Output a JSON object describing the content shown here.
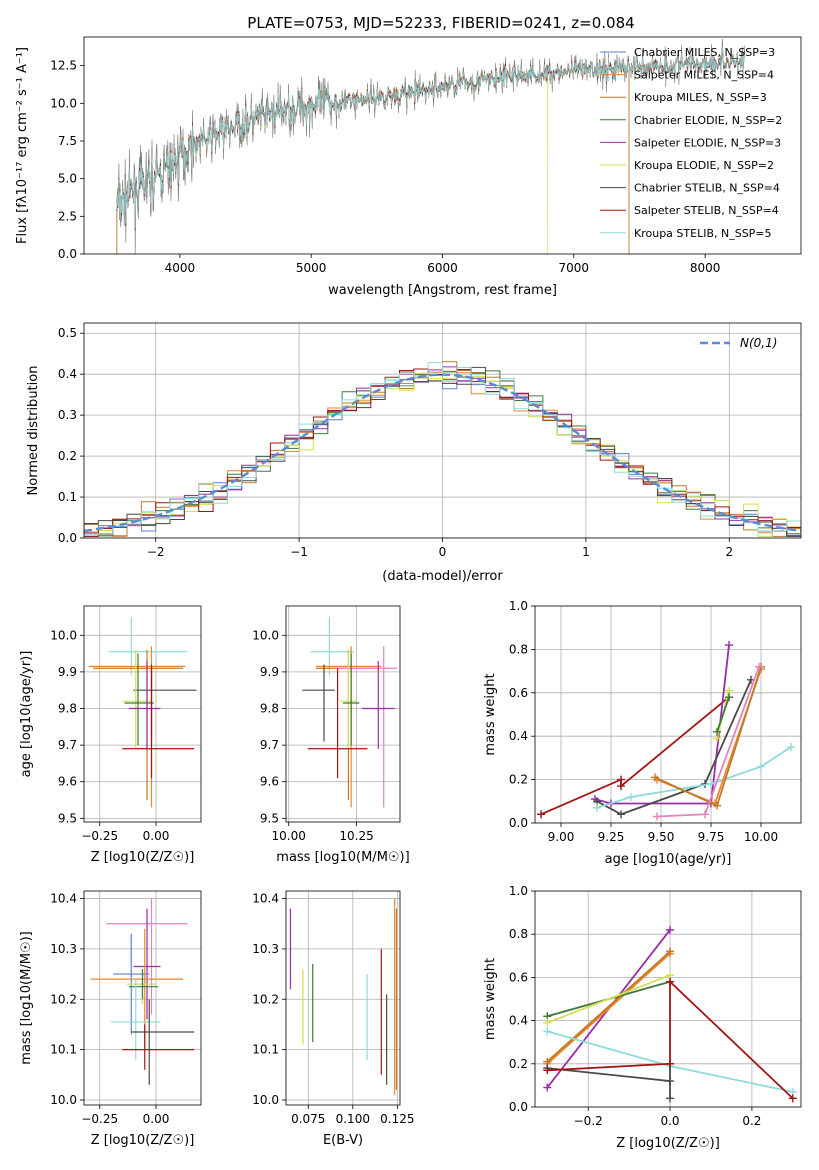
{
  "palette": {
    "Chabrier MILES": "#5e7fd6",
    "Salpeter MILES": "#e8872f",
    "Kroupa MILES": "#c07a27",
    "Chabrier ELODIE": "#3c7a3c",
    "Salpeter ELODIE": "#9a2ca8",
    "Kroupa ELODIE": "#d2e051",
    "Chabrier STELIB": "#4a4a4a",
    "Salpeter STELIB": "#a31515",
    "Kroupa STELIB": "#8fdadb",
    "extra_pink": "#e482c0",
    "extra_lightgreen": "#8fce3a",
    "data_gray": "#808080",
    "normal_curve": "#5b8bd6"
  },
  "chart_data": [
    {
      "type": "line",
      "title": "PLATE=0753, MJD=52233, FIBERID=0241, z=0.084",
      "xlabel": "wavelength [Angstrom, rest frame]",
      "ylabel": "Flux [fλ10⁻¹⁷ erg cm⁻² s⁻¹ A⁻¹]",
      "xlim": [
        3270,
        8730
      ],
      "ylim": [
        0,
        14.4
      ],
      "xticks": [
        "4000",
        "5000",
        "6000",
        "7000",
        "8000"
      ],
      "yticks": [
        "0.0",
        "2.5",
        "5.0",
        "7.5",
        "10.0",
        "12.5"
      ],
      "legend": "right",
      "series": [
        {
          "name": "Chabrier MILES, N_SSP=3"
        },
        {
          "name": "Salpeter MILES, N_SSP=4"
        },
        {
          "name": "Kroupa MILES, N_SSP=3"
        },
        {
          "name": "Chabrier ELODIE, N_SSP=2"
        },
        {
          "name": "Salpeter ELODIE, N_SSP=3"
        },
        {
          "name": "Kroupa ELODIE, N_SSP=2"
        },
        {
          "name": "Chabrier STELIB, N_SSP=4"
        },
        {
          "name": "Salpeter STELIB, N_SSP=4"
        },
        {
          "name": "Kroupa STELIB, N_SSP=5"
        }
      ],
      "continuum": {
        "x": [
          3520,
          3600,
          3700,
          3800,
          3900,
          4000,
          4100,
          4200,
          4300,
          4400,
          4500,
          4600,
          4700,
          4800,
          4900,
          5000,
          5100,
          5200,
          5300,
          5400,
          5500,
          5600,
          5700,
          5800,
          5900,
          6000,
          6100,
          6200,
          6300,
          6400,
          6500,
          6600,
          6700,
          6800,
          6900,
          7000,
          7100,
          7200,
          7300,
          7400,
          7500,
          7600,
          7700,
          7800,
          7900,
          8000,
          8100,
          8200,
          8300
        ],
        "y": [
          3.2,
          3.8,
          4.4,
          5.0,
          5.6,
          6.4,
          7.3,
          7.6,
          8.0,
          8.4,
          8.7,
          9.0,
          9.3,
          9.5,
          9.7,
          9.9,
          10.0,
          10.1,
          10.2,
          10.3,
          10.4,
          10.5,
          10.6,
          10.7,
          10.9,
          11.1,
          11.3,
          11.4,
          11.5,
          11.6,
          11.8,
          11.9,
          11.9,
          12.0,
          12.1,
          12.1,
          12.2,
          12.3,
          12.3,
          12.4,
          12.4,
          12.5,
          12.5,
          12.6,
          12.6,
          12.7,
          12.7,
          12.8,
          12.8
        ]
      },
      "dropouts": [
        {
          "series": "Kroupa ELODIE, N_SSP=2",
          "x": 6800
        },
        {
          "series": "Salpeter MILES, N_SSP=4",
          "x": 7420
        }
      ]
    },
    {
      "type": "bar",
      "xlabel": "(data-model)/error",
      "ylabel": "Normed distribution",
      "xlim": [
        -2.5,
        2.5
      ],
      "ylim": [
        0,
        0.525
      ],
      "xticks": [
        "−2",
        "−1",
        "0",
        "1",
        "2"
      ],
      "yticks": [
        "0.0",
        "0.1",
        "0.2",
        "0.3",
        "0.4",
        "0.5"
      ],
      "grid": true,
      "legend": "top-right",
      "normal_curve": {
        "label": "N(0,1)",
        "mean": 0,
        "sigma": 1
      },
      "bin_edges_range": [
        -2.5,
        2.5
      ],
      "bin_width": 0.1
    },
    {
      "type": "scatter",
      "xlabel": "Z [log10(Z/Z☉)]",
      "ylabel": "age  [log10(age/yr)]",
      "xlim": [
        -0.32,
        0.2
      ],
      "ylim": [
        9.49,
        10.08
      ],
      "xticks": [
        "−0.25",
        "0.00"
      ],
      "yticks": [
        "9.5",
        "9.6",
        "9.7",
        "9.8",
        "9.9",
        "10.0"
      ],
      "points": [
        {
          "c": "Kroupa STELIB",
          "x": -0.11,
          "y": 9.955,
          "xe": [
            -0.21,
            0.14
          ],
          "ye": [
            9.89,
            10.05
          ]
        },
        {
          "c": "Salpeter MILES",
          "x": -0.02,
          "y": 9.915,
          "xe": [
            -0.3,
            0.13
          ],
          "ye": [
            9.53,
            9.97
          ]
        },
        {
          "c": "Kroupa MILES",
          "x": -0.04,
          "y": 9.91,
          "xe": [
            -0.28,
            0.12
          ],
          "ye": [
            9.55,
            9.96
          ]
        },
        {
          "c": "Chabrier STELIB",
          "x": -0.02,
          "y": 9.85,
          "xe": [
            -0.1,
            0.18
          ],
          "ye": [
            9.71,
            9.92
          ]
        },
        {
          "c": "Kroupa ELODIE",
          "x": -0.09,
          "y": 9.82,
          "xe": [
            -0.15,
            -0.02
          ],
          "ye": [
            9.69,
            9.96
          ]
        },
        {
          "c": "Chabrier ELODIE",
          "x": -0.08,
          "y": 9.815,
          "xe": [
            -0.14,
            -0.01
          ],
          "ye": [
            9.7,
            9.95
          ]
        },
        {
          "c": "Salpeter ELODIE",
          "x": -0.04,
          "y": 9.8,
          "xe": [
            -0.12,
            0.02
          ],
          "ye": [
            9.69,
            9.93
          ]
        },
        {
          "c": "Salpeter STELIB",
          "x": -0.02,
          "y": 9.69,
          "xe": [
            -0.15,
            0.17
          ],
          "ye": [
            9.61,
            9.91
          ]
        }
      ]
    },
    {
      "type": "scatter",
      "xlabel": "mass [log10(M/M☉)]",
      "xlim": [
        9.99,
        10.41
      ],
      "ylim": [
        9.49,
        10.08
      ],
      "xticks": [
        "10.00",
        "10.25"
      ],
      "yticks": [
        "9.5",
        "9.6",
        "9.7",
        "9.8",
        "9.9",
        "10.0"
      ],
      "points": [
        {
          "c": "Kroupa STELIB",
          "x": 10.15,
          "y": 9.955,
          "xe": [
            10.08,
            10.24
          ],
          "ye": [
            9.89,
            10.05
          ]
        },
        {
          "c": "Salpeter MILES",
          "x": 10.23,
          "y": 9.915,
          "xe": [
            10.1,
            10.34
          ],
          "ye": [
            9.53,
            9.97
          ]
        },
        {
          "c": "Kroupa MILES",
          "x": 10.22,
          "y": 9.91,
          "xe": [
            10.1,
            10.33
          ],
          "ye": [
            9.55,
            9.96
          ]
        },
        {
          "c": "extra_pink",
          "x": 10.35,
          "y": 9.91,
          "xe": [
            10.17,
            10.4
          ],
          "ye": [
            9.53,
            9.97
          ]
        },
        {
          "c": "Chabrier STELIB",
          "x": 10.13,
          "y": 9.85,
          "xe": [
            10.05,
            10.17
          ],
          "ye": [
            9.71,
            9.92
          ]
        },
        {
          "c": "Kroupa ELODIE",
          "x": 10.22,
          "y": 9.82,
          "xe": [
            10.19,
            10.25
          ],
          "ye": [
            9.69,
            9.96
          ]
        },
        {
          "c": "Chabrier ELODIE",
          "x": 10.23,
          "y": 9.815,
          "xe": [
            10.2,
            10.26
          ],
          "ye": [
            9.7,
            9.95
          ]
        },
        {
          "c": "Salpeter ELODIE",
          "x": 10.33,
          "y": 9.8,
          "xe": [
            10.27,
            10.39
          ],
          "ye": [
            9.69,
            9.93
          ]
        },
        {
          "c": "Salpeter STELIB",
          "x": 10.18,
          "y": 9.69,
          "xe": [
            10.07,
            10.29
          ],
          "ye": [
            9.61,
            9.91
          ]
        }
      ]
    },
    {
      "type": "line",
      "xlabel": "age  [log10(age/yr)]",
      "ylabel": "mass weight",
      "xlim": [
        8.87,
        10.2
      ],
      "ylim": [
        0,
        1.0
      ],
      "xticks": [
        "9.00",
        "9.25",
        "9.50",
        "9.75",
        "10.00"
      ],
      "yticks": [
        "0.0",
        "0.2",
        "0.4",
        "0.6",
        "0.8",
        "1.0"
      ],
      "grid": true,
      "series": [
        {
          "c": "Salpeter STELIB",
          "x": [
            8.9,
            9.3,
            9.3,
            9.84
          ],
          "y": [
            0.04,
            0.2,
            0.17,
            0.58
          ]
        },
        {
          "c": "Salpeter ELODIE",
          "x": [
            9.17,
            9.25,
            9.75,
            9.84
          ],
          "y": [
            0.11,
            0.09,
            0.09,
            0.82
          ]
        },
        {
          "c": "Chabrier STELIB",
          "x": [
            9.18,
            9.3,
            9.72,
            9.95
          ],
          "y": [
            0.1,
            0.04,
            0.18,
            0.66
          ]
        },
        {
          "c": "Kroupa STELIB",
          "x": [
            9.18,
            9.35,
            9.75,
            10.0,
            10.15
          ],
          "y": [
            0.07,
            0.12,
            0.18,
            0.26,
            0.35
          ]
        },
        {
          "c": "Salpeter MILES",
          "x": [
            9.48,
            9.77,
            10.0
          ],
          "y": [
            0.2,
            0.09,
            0.71
          ]
        },
        {
          "c": "Kroupa MILES",
          "x": [
            9.47,
            9.78,
            10.0
          ],
          "y": [
            0.21,
            0.08,
            0.72
          ]
        },
        {
          "c": "extra_pink",
          "x": [
            9.48,
            9.72,
            9.99
          ],
          "y": [
            0.03,
            0.04,
            0.72
          ]
        },
        {
          "c": "Kroupa ELODIE",
          "x": [
            9.78,
            9.84
          ],
          "y": [
            0.39,
            0.61
          ]
        },
        {
          "c": "Chabrier ELODIE",
          "x": [
            9.78,
            9.84
          ],
          "y": [
            0.42,
            0.58
          ]
        }
      ]
    },
    {
      "type": "scatter",
      "xlabel": "Z [log10(Z/Z☉)]",
      "ylabel": "mass [log10(M/M☉)]",
      "xlim": [
        -0.32,
        0.2
      ],
      "ylim": [
        9.99,
        10.415
      ],
      "xticks": [
        "−0.25",
        "0.00"
      ],
      "yticks": [
        "10.0",
        "10.1",
        "10.2",
        "10.3",
        "10.4"
      ],
      "points": [
        {
          "c": "extra_pink",
          "x": -0.02,
          "y": 10.35,
          "xe": [
            -0.22,
            0.14
          ],
          "ye": [
            10.17,
            10.4
          ]
        },
        {
          "c": "Salpeter ELODIE",
          "x": -0.04,
          "y": 10.265,
          "xe": [
            -0.1,
            0.02
          ],
          "ye": [
            10.16,
            10.38
          ]
        },
        {
          "c": "Chabrier MILES",
          "x": -0.11,
          "y": 10.25,
          "xe": [
            -0.19,
            -0.03
          ],
          "ye": [
            10.13,
            10.33
          ]
        },
        {
          "c": "Salpeter MILES",
          "x": -0.05,
          "y": 10.24,
          "xe": [
            -0.29,
            0.12
          ],
          "ye": [
            10.1,
            10.34
          ]
        },
        {
          "c": "Kroupa ELODIE",
          "x": -0.06,
          "y": 10.23,
          "xe": [
            -0.13,
            0.0
          ],
          "ye": [
            10.19,
            10.26
          ]
        },
        {
          "c": "Chabrier ELODIE",
          "x": -0.06,
          "y": 10.225,
          "xe": [
            -0.12,
            0.01
          ],
          "ye": [
            10.2,
            10.26
          ]
        },
        {
          "c": "Kroupa STELIB",
          "x": -0.09,
          "y": 10.155,
          "xe": [
            -0.2,
            0.02
          ],
          "ye": [
            10.08,
            10.24
          ]
        },
        {
          "c": "Chabrier STELIB",
          "x": -0.03,
          "y": 10.135,
          "xe": [
            -0.11,
            0.17
          ],
          "ye": [
            10.03,
            10.2
          ]
        },
        {
          "c": "Salpeter STELIB",
          "x": -0.05,
          "y": 10.1,
          "xe": [
            -0.15,
            0.17
          ],
          "ye": [
            10.06,
            10.15
          ]
        }
      ]
    },
    {
      "type": "scatter",
      "xlabel": "E(B-V)",
      "xlim": [
        0.0625,
        0.1265
      ],
      "ylim": [
        9.99,
        10.415
      ],
      "xticks": [
        "0.075",
        "0.100",
        "0.125"
      ],
      "yticks": [
        "10.0",
        "10.1",
        "10.2",
        "10.3",
        "10.4"
      ],
      "points": [
        {
          "c": "Salpeter ELODIE",
          "x": 0.065,
          "ye": [
            10.22,
            10.38
          ]
        },
        {
          "c": "Kroupa ELODIE",
          "x": 0.072,
          "ye": [
            10.11,
            10.26
          ]
        },
        {
          "c": "Chabrier ELODIE",
          "x": 0.0775,
          "ye": [
            10.115,
            10.27
          ]
        },
        {
          "c": "Kroupa STELIB",
          "x": 0.108,
          "ye": [
            10.08,
            10.25
          ]
        },
        {
          "c": "Salpeter STELIB",
          "x": 0.116,
          "ye": [
            10.05,
            10.3
          ]
        },
        {
          "c": "Chabrier STELIB",
          "x": 0.119,
          "ye": [
            10.03,
            10.21
          ]
        },
        {
          "c": "Salpeter MILES",
          "x": 0.1235,
          "ye": [
            10.01,
            10.4
          ]
        },
        {
          "c": "Kroupa MILES",
          "x": 0.1245,
          "ye": [
            10.02,
            10.38
          ]
        }
      ]
    },
    {
      "type": "line",
      "xlabel": "Z [log10(Z/Z☉)]",
      "ylabel": "mass weight",
      "xlim": [
        -0.33,
        0.32
      ],
      "ylim": [
        0,
        1.0
      ],
      "xticks": [
        "−0.2",
        "0.0",
        "0.2"
      ],
      "yticks": [
        "0.0",
        "0.2",
        "0.4",
        "0.6",
        "0.8",
        "1.0"
      ],
      "grid": true,
      "series": [
        {
          "c": "Salpeter ELODIE",
          "x": [
            -0.3,
            0.0
          ],
          "y": [
            0.09,
            0.82
          ]
        },
        {
          "c": "extra_pink",
          "x": [
            -0.3,
            0.0
          ],
          "y": [
            0.2,
            0.72
          ]
        },
        {
          "c": "Salpeter MILES",
          "x": [
            -0.3,
            0.0
          ],
          "y": [
            0.2,
            0.71
          ]
        },
        {
          "c": "Kroupa MILES",
          "x": [
            -0.3,
            0.0
          ],
          "y": [
            0.21,
            0.72
          ]
        },
        {
          "c": "Chabrier ELODIE",
          "x": [
            -0.3,
            0.0
          ],
          "y": [
            0.42,
            0.58
          ]
        },
        {
          "c": "Kroupa ELODIE",
          "x": [
            -0.3,
            0.0
          ],
          "y": [
            0.39,
            0.61
          ]
        },
        {
          "c": "Kroupa STELIB",
          "x": [
            -0.3,
            0.0,
            0.3
          ],
          "y": [
            0.35,
            0.19,
            0.07
          ]
        },
        {
          "c": "Chabrier STELIB",
          "x": [
            -0.3,
            0.0,
            0.0,
            0.0
          ],
          "y": [
            0.18,
            0.12,
            0.04,
            0.2
          ]
        },
        {
          "c": "Salpeter STELIB",
          "x": [
            -0.3,
            0.0,
            0.0,
            0.3
          ],
          "y": [
            0.17,
            0.2,
            0.58,
            0.04
          ]
        }
      ]
    }
  ]
}
